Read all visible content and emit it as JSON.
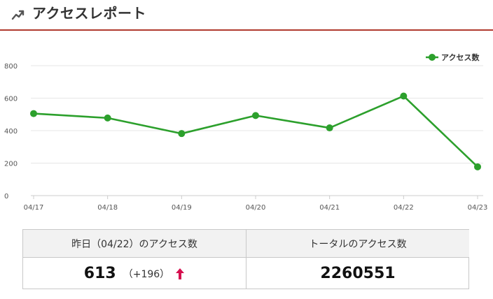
{
  "header": {
    "title": "アクセスレポート",
    "icon": "trending-up-icon"
  },
  "colors": {
    "accent_line": "#b03a2e",
    "series": "#2ca02c",
    "up_arrow": "#d6104f"
  },
  "chart_data": {
    "type": "line",
    "x": [
      "04/17",
      "04/18",
      "04/19",
      "04/20",
      "04/21",
      "04/22",
      "04/23"
    ],
    "series": [
      {
        "name": "アクセス数",
        "values": [
          505,
          478,
          382,
          493,
          417,
          613,
          177
        ]
      }
    ],
    "ylim": [
      0,
      800
    ],
    "yticks": [
      0,
      200,
      400,
      600,
      800
    ],
    "grid": true,
    "legend_position": "top-right"
  },
  "stats": {
    "yesterday_label": "昨日（04/22）のアクセス数",
    "yesterday_value": "613",
    "yesterday_diff": "（+196）",
    "trend_icon": "up-arrow-icon",
    "total_label": "トータルのアクセス数",
    "total_value": "2260551"
  }
}
